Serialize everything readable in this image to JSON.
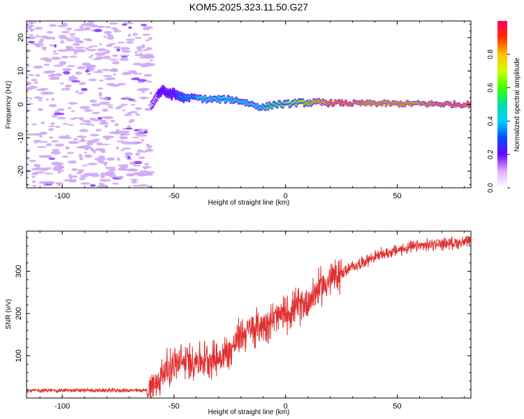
{
  "title": "KOM5.2025.323.11.50.G27",
  "chart_data": [
    {
      "type": "heatmap",
      "name": "spectrogram",
      "xlabel": "Height of straight line (km)",
      "ylabel": "Frequency (Hz)",
      "xlim": [
        -116,
        83
      ],
      "ylim": [
        -25,
        25
      ],
      "xticks": [
        -100,
        -50,
        0,
        50
      ],
      "yticks": [
        -20,
        -10,
        0,
        10,
        20
      ],
      "noise_region_x": [
        -116,
        -60
      ],
      "ridge": {
        "x": [
          -60,
          -56,
          -50,
          -45,
          -40,
          -35,
          -30,
          -25,
          -20,
          -15,
          -10,
          -5,
          0,
          5,
          10,
          15,
          20,
          30,
          40,
          50,
          60,
          70,
          83
        ],
        "freq": [
          0,
          4,
          3,
          2,
          2,
          1.5,
          1.5,
          1.5,
          1,
          0,
          -1,
          0,
          0,
          0.5,
          0.5,
          0.5,
          0.5,
          0.3,
          0.3,
          0.2,
          0.2,
          0.1,
          0
        ],
        "amp": [
          0.1,
          0.15,
          0.25,
          0.35,
          0.4,
          0.45,
          0.45,
          0.45,
          0.45,
          0.45,
          0.5,
          0.55,
          0.6,
          0.65,
          0.75,
          0.85,
          0.95,
          0.95,
          0.85,
          0.9,
          0.9,
          0.95,
          0.95
        ]
      },
      "colorbar": {
        "label": "Normalized spectral amplitude",
        "range": [
          0,
          1
        ],
        "ticks": [
          "0.0",
          "0.2",
          "0.4",
          "0.6",
          "0.8"
        ]
      }
    },
    {
      "type": "line",
      "name": "snr",
      "xlabel": "Height of straight line (km)",
      "ylabel": "SNR (v/v)",
      "xlim": [
        -116,
        83
      ],
      "ylim": [
        0,
        395
      ],
      "xticks": [
        -100,
        -50,
        0,
        50
      ],
      "yticks": [
        100,
        200,
        300
      ],
      "color": "#e03030",
      "trend": {
        "x": [
          -116,
          -90,
          -62,
          -58,
          -55,
          -50,
          -40,
          -30,
          -25,
          -20,
          -10,
          0,
          10,
          15,
          20,
          30,
          40,
          50,
          60,
          70,
          83
        ],
        "y": [
          18,
          18,
          18,
          30,
          60,
          80,
          90,
          95,
          110,
          150,
          175,
          200,
          230,
          260,
          280,
          310,
          335,
          350,
          360,
          365,
          370
        ]
      }
    }
  ]
}
